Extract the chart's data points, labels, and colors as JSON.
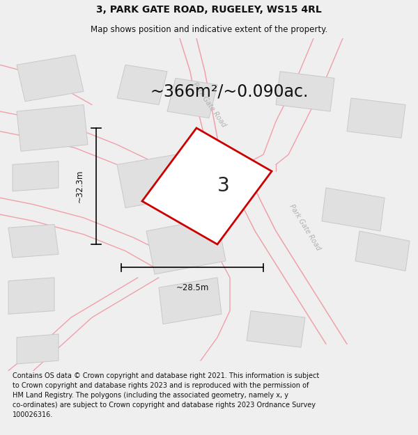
{
  "title": "3, PARK GATE ROAD, RUGELEY, WS15 4RL",
  "subtitle": "Map shows position and indicative extent of the property.",
  "area_text": "~366m²/~0.090ac.",
  "label_number": "3",
  "dim_width": "~28.5m",
  "dim_height": "~32.3m",
  "footer_lines": [
    "Contains OS data © Crown copyright and database right 2021. This information is subject to Crown copyright and database rights 2023 and is reproduced with the permission of",
    "HM Land Registry. The polygons (including the associated geometry, namely x, y co-ordinates) are subject to Crown copyright and database rights 2023 Ordnance Survey 100026316."
  ],
  "bg_color": "#efefef",
  "map_bg": "#ffffff",
  "plot_color": "#cc0000",
  "road_color": "#f0a0a8",
  "building_fill": "#e0e0e0",
  "building_edge": "#c8c8c8",
  "road_label_color": "#b0b0b0",
  "title_fontsize": 10,
  "subtitle_fontsize": 8.5,
  "area_fontsize": 17,
  "number_fontsize": 20,
  "footer_fontsize": 7
}
